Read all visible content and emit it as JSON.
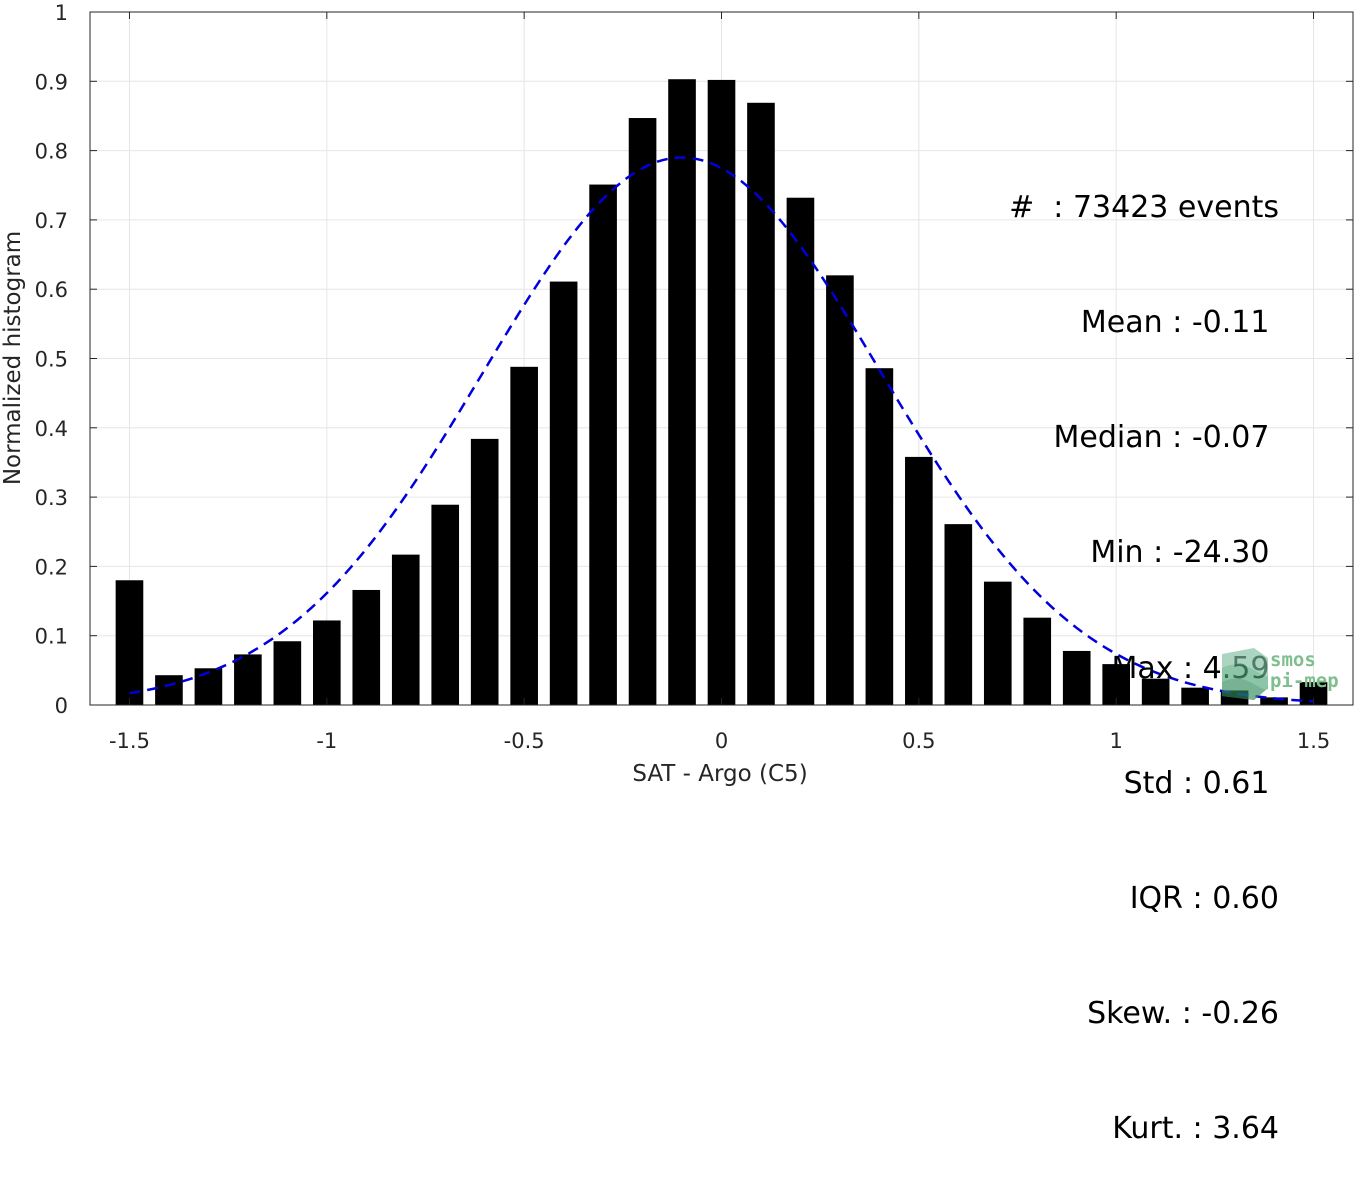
{
  "chart_data": {
    "type": "bar",
    "xlabel": "SAT - Argo (C5)",
    "ylabel": "Normalized histogram",
    "xlim": [
      -1.6,
      1.6
    ],
    "ylim": [
      0,
      1
    ],
    "grid": true,
    "xticks": [
      -1.5,
      -1,
      -0.5,
      0,
      0.5,
      1,
      1.5
    ],
    "xtick_labels": [
      "-1.5",
      "-1",
      "-0.5",
      "0",
      "0.5",
      "1",
      "1.5"
    ],
    "yticks": [
      0,
      0.1,
      0.2,
      0.3,
      0.4,
      0.5,
      0.6,
      0.7,
      0.8,
      0.9,
      1
    ],
    "ytick_labels": [
      "0",
      "0.1",
      "0.2",
      "0.3",
      "0.4",
      "0.5",
      "0.6",
      "0.7",
      "0.8",
      "0.9",
      "1"
    ],
    "bar_width": 0.07,
    "bar_color": "#000000",
    "x": [
      -1.5,
      -1.4,
      -1.3,
      -1.2,
      -1.1,
      -1.0,
      -0.9,
      -0.8,
      -0.7,
      -0.6,
      -0.5,
      -0.4,
      -0.3,
      -0.2,
      -0.1,
      0.0,
      0.1,
      0.2,
      0.3,
      0.4,
      0.5,
      0.6,
      0.7,
      0.8,
      0.9,
      1.0,
      1.1,
      1.2,
      1.3,
      1.4,
      1.5
    ],
    "values": [
      0.18,
      0.043,
      0.053,
      0.073,
      0.092,
      0.122,
      0.166,
      0.217,
      0.289,
      0.384,
      0.488,
      0.611,
      0.751,
      0.847,
      0.903,
      0.902,
      0.869,
      0.732,
      0.62,
      0.486,
      0.358,
      0.261,
      0.178,
      0.126,
      0.078,
      0.059,
      0.038,
      0.025,
      0.021,
      0.011,
      0.033
    ],
    "fit_curve": {
      "style": "dashed",
      "color": "#0000dd",
      "mean": -0.1,
      "std": 0.505,
      "peak": 0.79,
      "x_range": [
        -1.5,
        1.5
      ]
    },
    "annotations": [
      "#  : 73423 events",
      "Mean : -0.11 ",
      "Median : -0.07 ",
      "Min : -24.30 ",
      "Max : 4.59 ",
      "Std : 0.61 ",
      "IQR : 0.60",
      "Skew. : -0.26",
      "Kurt. : 3.64"
    ]
  },
  "logo": {
    "line1": "smos",
    "line2": "pi-mep"
  }
}
